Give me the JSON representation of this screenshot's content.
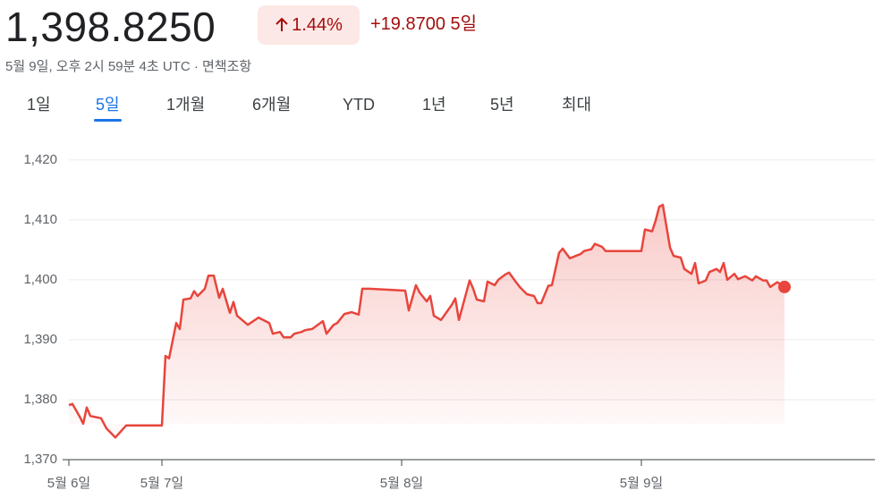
{
  "header": {
    "price": "1,398.8250",
    "change_percent": "1.44%",
    "change_value": "+19.8700 5일",
    "timestamp": "5월 9일, 오후 2시 59분 4초 UTC",
    "separator": "·",
    "disclaimer": "면책조항"
  },
  "tabs": {
    "items": [
      "1일",
      "5일",
      "1개월",
      "6개월",
      "YTD",
      "1년",
      "5년",
      "최대"
    ],
    "selected": 1
  },
  "chart_data": {
    "type": "line",
    "color": "#e8453c",
    "grid": true,
    "x": [
      0,
      1,
      3,
      4,
      5,
      6,
      9,
      10.5,
      13,
      16,
      26,
      27,
      28,
      30,
      31,
      32,
      34,
      35,
      36,
      38,
      39,
      40.5,
      42,
      43,
      45,
      46,
      47,
      50,
      53,
      56,
      57,
      59,
      60,
      62,
      63,
      65,
      66,
      68,
      71,
      72,
      74,
      75,
      77,
      79,
      81,
      82,
      84,
      94,
      95,
      97,
      98,
      100,
      101,
      102,
      104,
      107,
      108,
      109,
      110,
      112,
      113,
      114,
      116,
      117,
      119,
      120,
      122,
      123,
      125,
      126,
      128,
      130,
      131,
      132,
      134,
      135,
      137,
      138,
      140,
      143,
      144,
      146,
      147,
      149,
      150,
      160,
      161,
      163,
      164,
      165,
      166,
      168,
      169,
      171,
      172,
      174,
      175,
      176,
      178,
      179,
      181,
      182,
      183,
      184,
      186,
      187,
      189,
      191,
      192,
      194,
      195,
      196,
      198,
      200
    ],
    "values": [
      1379.1,
      1379.3,
      1377.2,
      1376.0,
      1378.7,
      1377.3,
      1376.9,
      1375.2,
      1373.7,
      1375.7,
      1375.7,
      1387.3,
      1386.9,
      1392.8,
      1391.8,
      1396.7,
      1396.9,
      1398.1,
      1397.3,
      1398.5,
      1400.7,
      1400.7,
      1397.0,
      1398.5,
      1394.5,
      1396.3,
      1394.0,
      1392.5,
      1393.7,
      1392.8,
      1391.0,
      1391.3,
      1390.4,
      1390.4,
      1391.0,
      1391.3,
      1391.6,
      1391.8,
      1393.1,
      1391.0,
      1392.5,
      1392.8,
      1394.3,
      1394.6,
      1394.2,
      1398.5,
      1398.5,
      1398.2,
      1394.9,
      1399.1,
      1397.9,
      1396.4,
      1397.3,
      1394.0,
      1393.3,
      1395.8,
      1396.9,
      1393.3,
      1395.5,
      1399.9,
      1398.5,
      1396.7,
      1396.4,
      1399.7,
      1399.1,
      1400.0,
      1400.9,
      1401.2,
      1399.6,
      1398.8,
      1397.6,
      1397.3,
      1396.1,
      1396.1,
      1399.0,
      1399.1,
      1404.5,
      1405.2,
      1403.6,
      1404.3,
      1404.8,
      1405.1,
      1406.0,
      1405.5,
      1404.8,
      1404.8,
      1408.4,
      1408.1,
      1409.9,
      1412.2,
      1412.5,
      1405.4,
      1404.0,
      1403.7,
      1401.8,
      1401.0,
      1402.8,
      1399.4,
      1399.9,
      1401.3,
      1401.8,
      1401.3,
      1402.8,
      1400.0,
      1401.0,
      1400.1,
      1400.6,
      1399.9,
      1400.6,
      1399.9,
      1399.9,
      1398.8,
      1399.6,
      1398.8
    ],
    "xlim": [
      0,
      225
    ],
    "xticks": [
      {
        "value": 0,
        "label": "5월 6일"
      },
      {
        "value": 26,
        "label": "5월 7일"
      },
      {
        "value": 93,
        "label": "5월 8일"
      },
      {
        "value": 160,
        "label": "5월 9일"
      }
    ],
    "ylim": [
      1370,
      1424
    ],
    "yticks": [
      {
        "value": 1370,
        "label": "1,370"
      },
      {
        "value": 1380,
        "label": "1,380"
      },
      {
        "value": 1390,
        "label": "1,390"
      },
      {
        "value": 1400,
        "label": "1,400"
      },
      {
        "value": 1410,
        "label": "1,410"
      },
      {
        "value": 1420,
        "label": "1,420"
      }
    ]
  }
}
